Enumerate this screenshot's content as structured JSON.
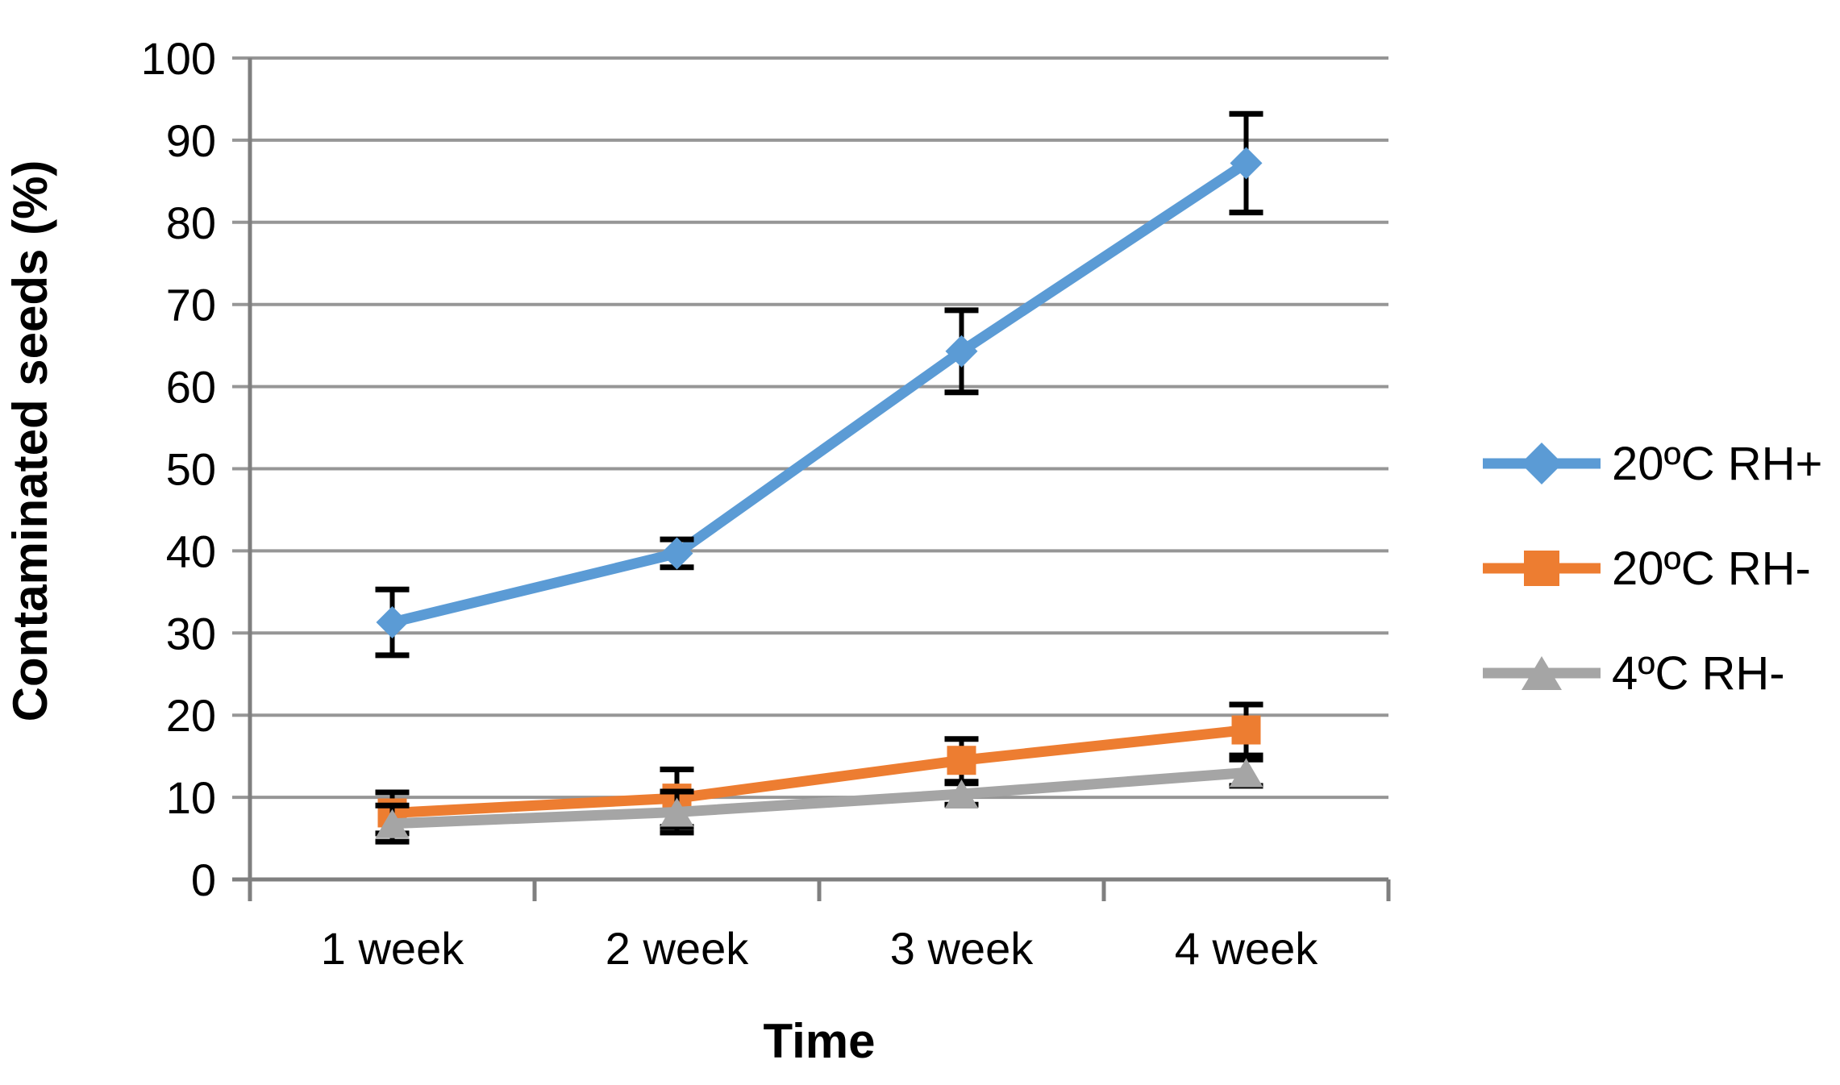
{
  "chart_data": {
    "type": "line",
    "title": "",
    "categories": [
      "1 week",
      "2 week",
      "3 week",
      "4 week"
    ],
    "xlabel": "Time",
    "ylabel": "Contaminated seeds (%)",
    "ylim": [
      0,
      100
    ],
    "yticks": [
      0,
      10,
      20,
      30,
      40,
      50,
      60,
      70,
      80,
      90,
      100
    ],
    "grid": true,
    "legend_position": "right",
    "series": [
      {
        "name": "20ºC RH+",
        "color": "#5B9BD5",
        "marker": "diamond",
        "values": [
          31.3,
          39.7,
          64.3,
          87.2
        ],
        "errors": [
          4.0,
          1.7,
          5.0,
          6.0
        ]
      },
      {
        "name": "20ºC RH-",
        "color": "#ED7D31",
        "marker": "square",
        "values": [
          8.1,
          9.9,
          14.5,
          18.2
        ],
        "errors": [
          2.5,
          3.5,
          2.6,
          3.1
        ]
      },
      {
        "name": "4ºC RH-",
        "color": "#A5A5A5",
        "marker": "triangle",
        "values": [
          6.8,
          8.2,
          10.4,
          13.0
        ],
        "errors": [
          2.2,
          2.5,
          1.3,
          1.6
        ]
      }
    ],
    "colors": {
      "gridline": "#969696",
      "axis": "#7F7F7F",
      "error_bar": "#000000",
      "text": "#000000",
      "background": "#FFFFFF"
    }
  }
}
